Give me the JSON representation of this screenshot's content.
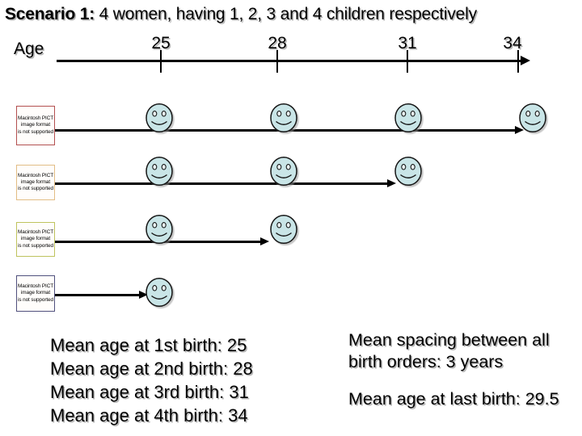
{
  "title": {
    "bold": "Scenario 1:",
    "rest": " 4 women, having 1, 2, 3 and 4 children respectively"
  },
  "axis": {
    "label": "Age",
    "ticks": [
      "25",
      "28",
      "31",
      "34"
    ]
  },
  "pict_placeholder": {
    "line1": "Macintosh PICT",
    "line2": "image format",
    "line3": "is not supported"
  },
  "rows": [
    {
      "children": 4,
      "birth_ages": [
        25,
        28,
        31,
        34
      ],
      "box_border": "#b35050"
    },
    {
      "children": 3,
      "birth_ages": [
        25,
        28,
        31
      ],
      "box_border": "#e2bd85"
    },
    {
      "children": 2,
      "birth_ages": [
        25,
        28
      ],
      "box_border": "#bfc35e"
    },
    {
      "children": 1,
      "birth_ages": [
        25
      ],
      "box_border": "#50507d"
    }
  ],
  "notes_left": [
    "Mean age at 1st birth: 25",
    "Mean age at 2nd birth: 28",
    "Mean age at 3rd birth: 31",
    "Mean age at 4th birth: 34"
  ],
  "notes_right": [
    "Mean spacing between all birth orders: 3 years",
    "Mean age at last birth: 29.5"
  ],
  "colors": {
    "face_fill": "#c9e5e7",
    "face_eye_fill": "#eaf4f5",
    "face_outline": "#151515",
    "pict_text": "#d05f66",
    "line": "#000000"
  }
}
